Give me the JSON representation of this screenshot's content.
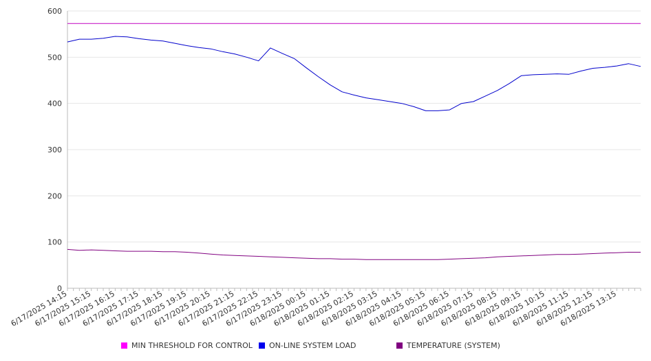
{
  "chart_data": {
    "type": "line",
    "title": "",
    "xlabel": "",
    "ylabel": "",
    "ylim": [
      0,
      600
    ],
    "yticks": [
      0,
      100,
      200,
      300,
      400,
      500,
      600
    ],
    "grid": "horizontal",
    "legend_position": "bottom",
    "x_tick_labels": [
      "6/17/2025 14:15",
      "6/17/2025 15:15",
      "6/17/2025 16:15",
      "6/17/2025 17:15",
      "6/17/2025 18:15",
      "6/17/2025 19:15",
      "6/17/2025 20:15",
      "6/17/2025 21:15",
      "6/17/2025 22:15",
      "6/17/2025 23:15",
      "6/18/2025 00:15",
      "6/18/2025 01:15",
      "6/18/2025 02:15",
      "6/18/2025 03:15",
      "6/18/2025 04:15",
      "6/18/2025 05:15",
      "6/18/2025 06:15",
      "6/18/2025 07:15",
      "6/18/2025 08:15",
      "6/18/2025 09:15",
      "6/18/2025 10:15",
      "6/18/2025 11:15",
      "6/18/2025 12:15",
      "6/18/2025 13:15"
    ],
    "x_hours": [
      0,
      0.5,
      1,
      1.5,
      2,
      2.5,
      3,
      3.5,
      4,
      4.5,
      5,
      5.5,
      6,
      6.5,
      7,
      7.5,
      8,
      8.5,
      9,
      9.5,
      10,
      10.5,
      11,
      11.5,
      12,
      12.5,
      13,
      13.5,
      14,
      14.5,
      15,
      15.5,
      16,
      16.5,
      17,
      17.5,
      18,
      18.5,
      19,
      19.5,
      20,
      20.5,
      21,
      21.5,
      22,
      22.5,
      23,
      23.5,
      24
    ],
    "series": [
      {
        "name": "MIN THRESHOLD FOR CONTROL",
        "color": "#c000c0",
        "values": [
          573,
          573,
          573,
          573,
          573,
          573,
          573,
          573,
          573,
          573,
          573,
          573,
          573,
          573,
          573,
          573,
          573,
          573,
          573,
          573,
          573,
          573,
          573,
          573,
          573,
          573,
          573,
          573,
          573,
          573,
          573,
          573,
          573,
          573,
          573,
          573,
          573,
          573,
          573,
          573,
          573,
          573,
          573,
          573,
          573,
          573,
          573,
          573,
          573
        ]
      },
      {
        "name": "ON-LINE SYSTEM LOAD",
        "color": "#0000cc",
        "values": [
          533,
          539,
          539,
          541,
          545,
          544,
          540,
          537,
          535,
          530,
          525,
          521,
          518,
          512,
          507,
          500,
          492,
          520,
          508,
          497,
          477,
          458,
          440,
          425,
          418,
          412,
          408,
          404,
          400,
          393,
          384,
          384,
          386,
          400,
          404,
          416,
          428,
          443,
          460,
          462,
          463,
          464,
          463,
          470,
          476,
          478,
          481,
          486,
          480
        ]
      },
      {
        "name": "TEMPERATURE (SYSTEM)",
        "color": "#800080",
        "values": [
          84,
          82,
          83,
          82,
          81,
          80,
          80,
          80,
          79,
          79,
          78,
          76,
          74,
          72,
          71,
          70,
          69,
          68,
          67,
          66,
          65,
          64,
          64,
          63,
          63,
          62,
          62,
          62,
          62,
          62,
          62,
          62,
          63,
          64,
          65,
          66,
          68,
          69,
          70,
          71,
          72,
          73,
          73,
          74,
          75,
          76,
          77,
          78,
          78
        ]
      }
    ]
  }
}
